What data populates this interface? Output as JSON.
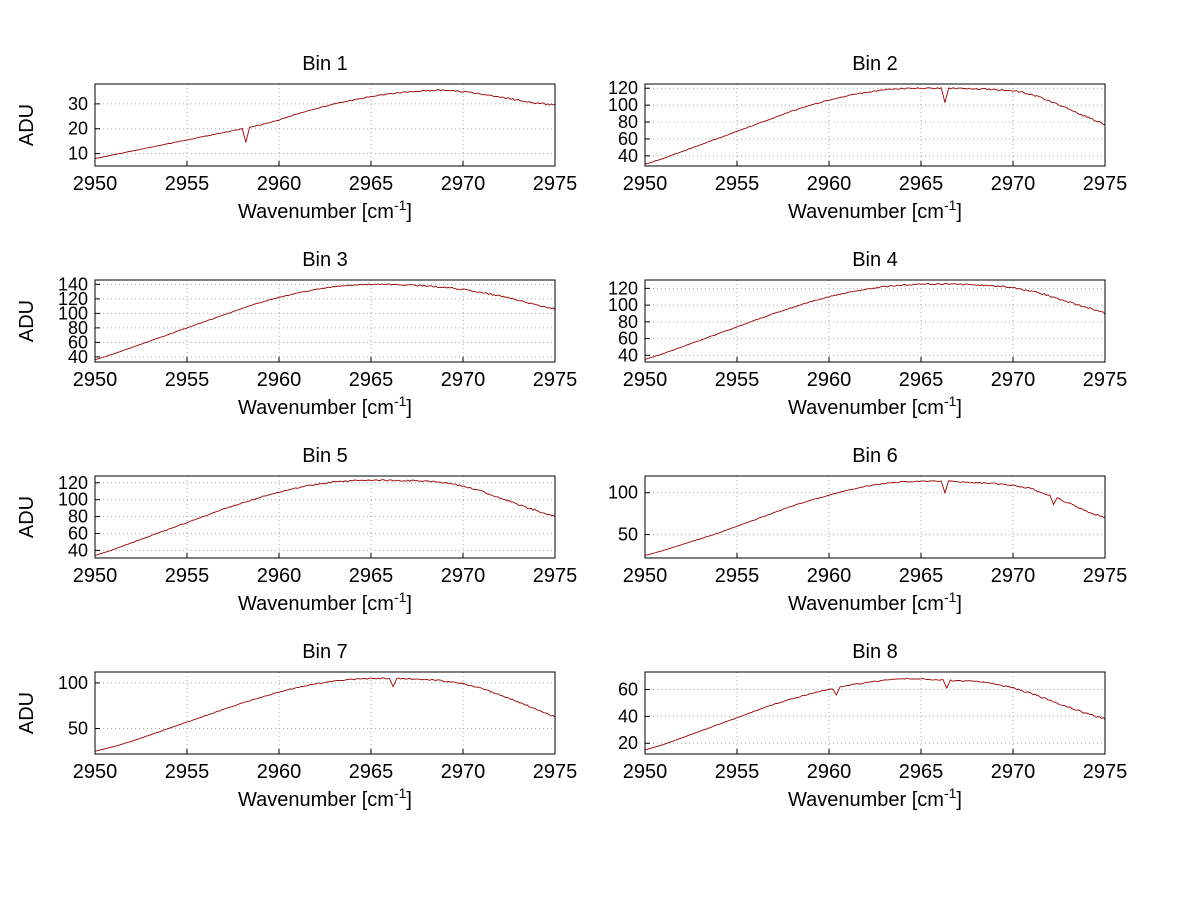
{
  "figure": {
    "background": "#ffffff",
    "line_color": "#990000",
    "grid_color": "#a8a8a8",
    "axis_color": "#000000",
    "ylabel": "ADU",
    "xlabel": {
      "main": "Wavenumber [cm",
      "sup": "-1",
      "end": "]"
    },
    "x_ticks": [
      2950,
      2955,
      2960,
      2965,
      2970,
      2975
    ],
    "xlim": [
      2950,
      2975
    ]
  },
  "chart_data": [
    {
      "type": "line",
      "title": "Bin 1",
      "x": [
        2950,
        2951,
        2952,
        2953,
        2954,
        2955,
        2956,
        2957,
        2958,
        2959,
        2960,
        2961,
        2962,
        2963,
        2964,
        2965,
        2966,
        2967,
        2968,
        2969,
        2970,
        2971,
        2972,
        2973,
        2974,
        2975
      ],
      "values": [
        8,
        9.5,
        11,
        12.5,
        14,
        15.5,
        17,
        18.5,
        20,
        21.5,
        23.5,
        26,
        28,
        30,
        31.5,
        33,
        34,
        34.8,
        35.3,
        35.5,
        35,
        34,
        32.8,
        31.5,
        30.3,
        29.5
      ],
      "yticks": [
        10,
        20,
        30
      ],
      "ylim": [
        5,
        38
      ],
      "noise": 0.35,
      "spikes": [
        {
          "x": 2958.2,
          "y": 14.5
        }
      ]
    },
    {
      "type": "line",
      "title": "Bin 2",
      "x": [
        2950,
        2951,
        2952,
        2953,
        2954,
        2955,
        2956,
        2957,
        2958,
        2959,
        2960,
        2961,
        2962,
        2963,
        2964,
        2965,
        2966,
        2967,
        2968,
        2969,
        2970,
        2971,
        2972,
        2973,
        2974,
        2975
      ],
      "values": [
        30,
        37,
        45,
        53,
        61,
        69,
        77,
        85,
        93,
        100,
        106,
        111,
        115,
        118,
        119.5,
        120,
        120,
        119.5,
        119,
        118.5,
        117,
        113,
        105,
        96,
        86,
        77
      ],
      "yticks": [
        40,
        60,
        80,
        100,
        120
      ],
      "ylim": [
        28,
        125
      ],
      "noise": 1.2,
      "spikes": [
        {
          "x": 2966.3,
          "y": 103
        }
      ]
    },
    {
      "type": "line",
      "title": "Bin 3",
      "x": [
        2950,
        2951,
        2952,
        2953,
        2954,
        2955,
        2956,
        2957,
        2958,
        2959,
        2960,
        2961,
        2962,
        2963,
        2964,
        2965,
        2966,
        2967,
        2968,
        2969,
        2970,
        2971,
        2972,
        2973,
        2974,
        2975
      ],
      "values": [
        36,
        44,
        53,
        62,
        71,
        80,
        89,
        98,
        107,
        115,
        122,
        128,
        133,
        137,
        139,
        140,
        140,
        139,
        138,
        136,
        133,
        129,
        124,
        118,
        112,
        106
      ],
      "yticks": [
        40,
        60,
        80,
        100,
        120,
        140
      ],
      "ylim": [
        33,
        146
      ],
      "noise": 1.2,
      "spikes": []
    },
    {
      "type": "line",
      "title": "Bin 4",
      "x": [
        2950,
        2951,
        2952,
        2953,
        2954,
        2955,
        2956,
        2957,
        2958,
        2959,
        2960,
        2961,
        2962,
        2963,
        2964,
        2965,
        2966,
        2967,
        2968,
        2969,
        2970,
        2971,
        2972,
        2973,
        2974,
        2975
      ],
      "values": [
        35,
        42,
        50,
        58,
        66,
        74,
        82,
        90,
        97,
        104,
        110,
        115,
        119,
        122,
        124,
        125,
        125.5,
        125,
        124,
        123,
        121,
        117,
        111,
        104,
        97,
        90
      ],
      "yticks": [
        40,
        60,
        80,
        100,
        120
      ],
      "ylim": [
        32,
        130
      ],
      "noise": 1.2,
      "spikes": []
    },
    {
      "type": "line",
      "title": "Bin 5",
      "x": [
        2950,
        2951,
        2952,
        2953,
        2954,
        2955,
        2956,
        2957,
        2958,
        2959,
        2960,
        2961,
        2962,
        2963,
        2964,
        2965,
        2966,
        2967,
        2968,
        2969,
        2970,
        2971,
        2972,
        2973,
        2974,
        2975
      ],
      "values": [
        34,
        41,
        49,
        57,
        65,
        73,
        81,
        89,
        96,
        103,
        109,
        114,
        118,
        121,
        122.5,
        123,
        123,
        122.5,
        122,
        120,
        116,
        110,
        102,
        94,
        87,
        80
      ],
      "yticks": [
        40,
        60,
        80,
        100,
        120
      ],
      "ylim": [
        31,
        128
      ],
      "noise": 1.2,
      "spikes": []
    },
    {
      "type": "line",
      "title": "Bin 6",
      "x": [
        2950,
        2951,
        2952,
        2953,
        2954,
        2955,
        2956,
        2957,
        2958,
        2959,
        2960,
        2961,
        2962,
        2963,
        2964,
        2965,
        2966,
        2967,
        2968,
        2969,
        2970,
        2971,
        2972,
        2973,
        2974,
        2975
      ],
      "values": [
        25,
        31,
        38,
        45,
        52,
        60,
        68,
        76,
        84,
        91,
        97,
        103,
        108,
        111,
        113,
        114,
        114,
        113,
        112,
        111,
        109,
        105,
        97,
        88,
        78,
        70
      ],
      "yticks": [
        50,
        100
      ],
      "ylim": [
        22,
        120
      ],
      "noise": 1.0,
      "spikes": [
        {
          "x": 2966.3,
          "y": 100
        },
        {
          "x": 2972.2,
          "y": 86
        }
      ]
    },
    {
      "type": "line",
      "title": "Bin 7",
      "x": [
        2950,
        2951,
        2952,
        2953,
        2954,
        2955,
        2956,
        2957,
        2958,
        2959,
        2960,
        2961,
        2962,
        2963,
        2964,
        2965,
        2966,
        2967,
        2968,
        2969,
        2970,
        2971,
        2972,
        2973,
        2974,
        2975
      ],
      "values": [
        25,
        30,
        36,
        43,
        50,
        57,
        64,
        71,
        78,
        84,
        90,
        95,
        99,
        102,
        104,
        105,
        105,
        104.5,
        104,
        102,
        99,
        94,
        87,
        79,
        71,
        63
      ],
      "yticks": [
        50,
        100
      ],
      "ylim": [
        22,
        112
      ],
      "noise": 0.9,
      "spikes": [
        {
          "x": 2966.2,
          "y": 96
        }
      ]
    },
    {
      "type": "line",
      "title": "Bin 8",
      "x": [
        2950,
        2951,
        2952,
        2953,
        2954,
        2955,
        2956,
        2957,
        2958,
        2959,
        2960,
        2961,
        2962,
        2963,
        2964,
        2965,
        2966,
        2967,
        2968,
        2969,
        2970,
        2971,
        2972,
        2973,
        2974,
        2975
      ],
      "values": [
        15,
        19,
        24,
        29,
        34,
        39,
        44,
        49,
        53,
        57,
        60,
        63,
        65,
        67,
        68,
        68,
        67,
        66.5,
        66,
        64,
        61,
        57,
        52,
        47,
        42,
        38
      ],
      "yticks": [
        20,
        40,
        60
      ],
      "ylim": [
        12,
        73
      ],
      "noise": 0.7,
      "spikes": [
        {
          "x": 2960.4,
          "y": 56
        },
        {
          "x": 2966.4,
          "y": 61
        }
      ]
    }
  ]
}
